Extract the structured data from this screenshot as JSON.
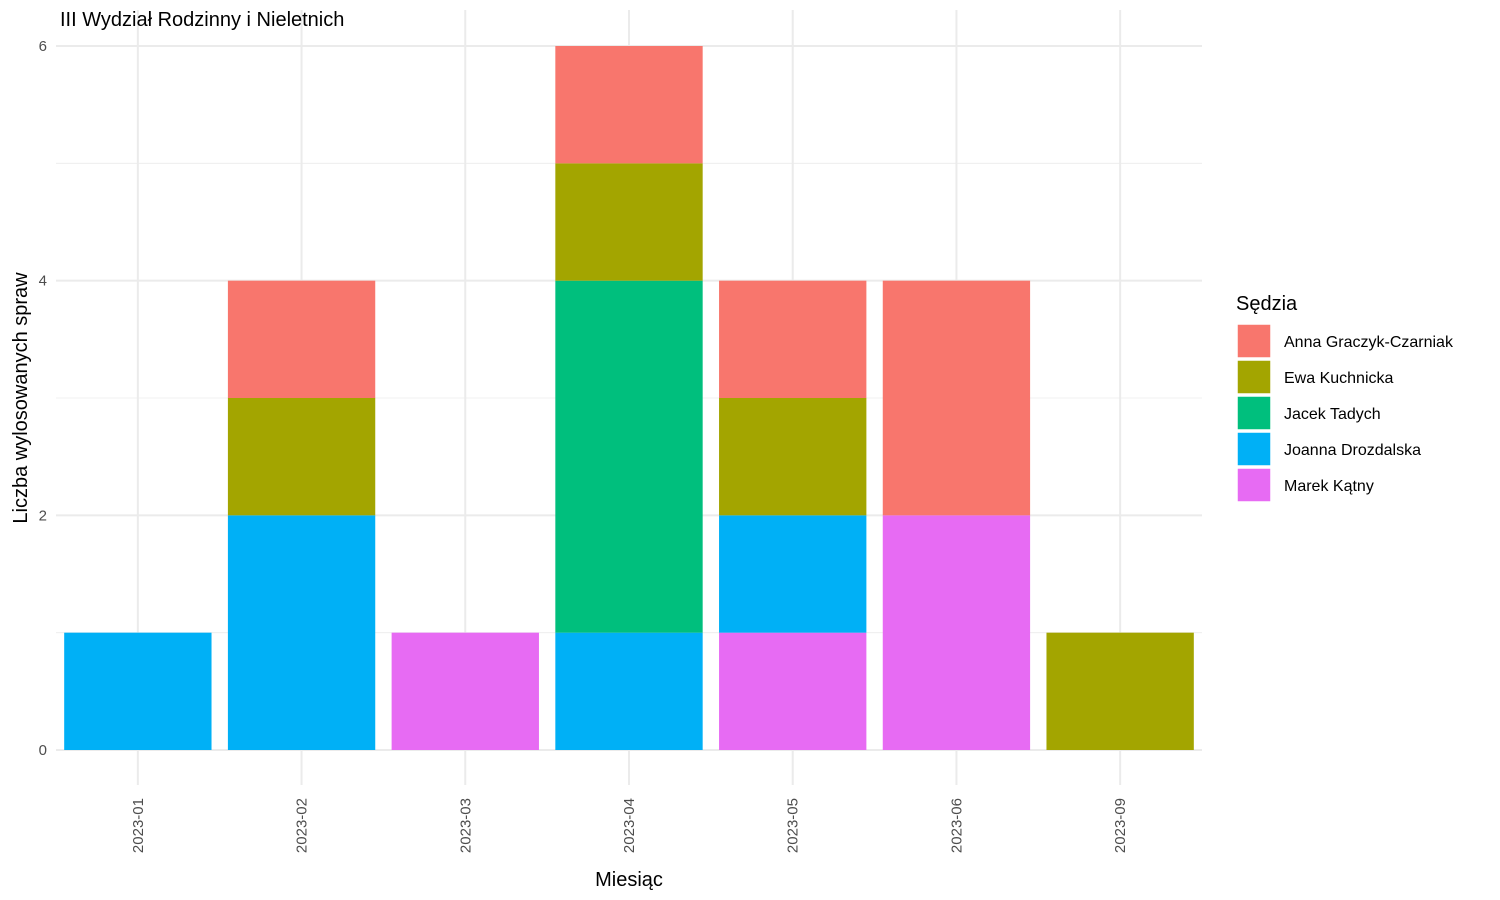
{
  "chart_data": {
    "type": "bar",
    "stacked": true,
    "title": "III Wydział Rodzinny i Nieletnich",
    "xlabel": "Miesiąc",
    "ylabel": "Liczba wylosowanych spraw",
    "ylim": [
      0,
      6
    ],
    "yticks": [
      0,
      2,
      4,
      6
    ],
    "grid": true,
    "legend_position": "right",
    "legend_title": "Sędzia",
    "categories": [
      "2023-01",
      "2023-02",
      "2023-03",
      "2023-04",
      "2023-05",
      "2023-06",
      "2023-09"
    ],
    "series": [
      {
        "name": "Anna Graczyk-Czarniak",
        "color": "#F8766D",
        "values": [
          0,
          1,
          0,
          1,
          1,
          2,
          0
        ]
      },
      {
        "name": "Ewa Kuchnicka",
        "color": "#A3A500",
        "values": [
          0,
          1,
          0,
          1,
          1,
          0,
          1
        ]
      },
      {
        "name": "Jacek Tadych",
        "color": "#00BF7D",
        "values": [
          0,
          0,
          0,
          3,
          0,
          0,
          0
        ]
      },
      {
        "name": "Joanna Drozdalska",
        "color": "#00B0F6",
        "values": [
          1,
          2,
          0,
          1,
          1,
          0,
          0
        ]
      },
      {
        "name": "Marek Kątny",
        "color": "#E76BF3",
        "values": [
          0,
          0,
          1,
          0,
          1,
          2,
          0
        ]
      }
    ]
  }
}
